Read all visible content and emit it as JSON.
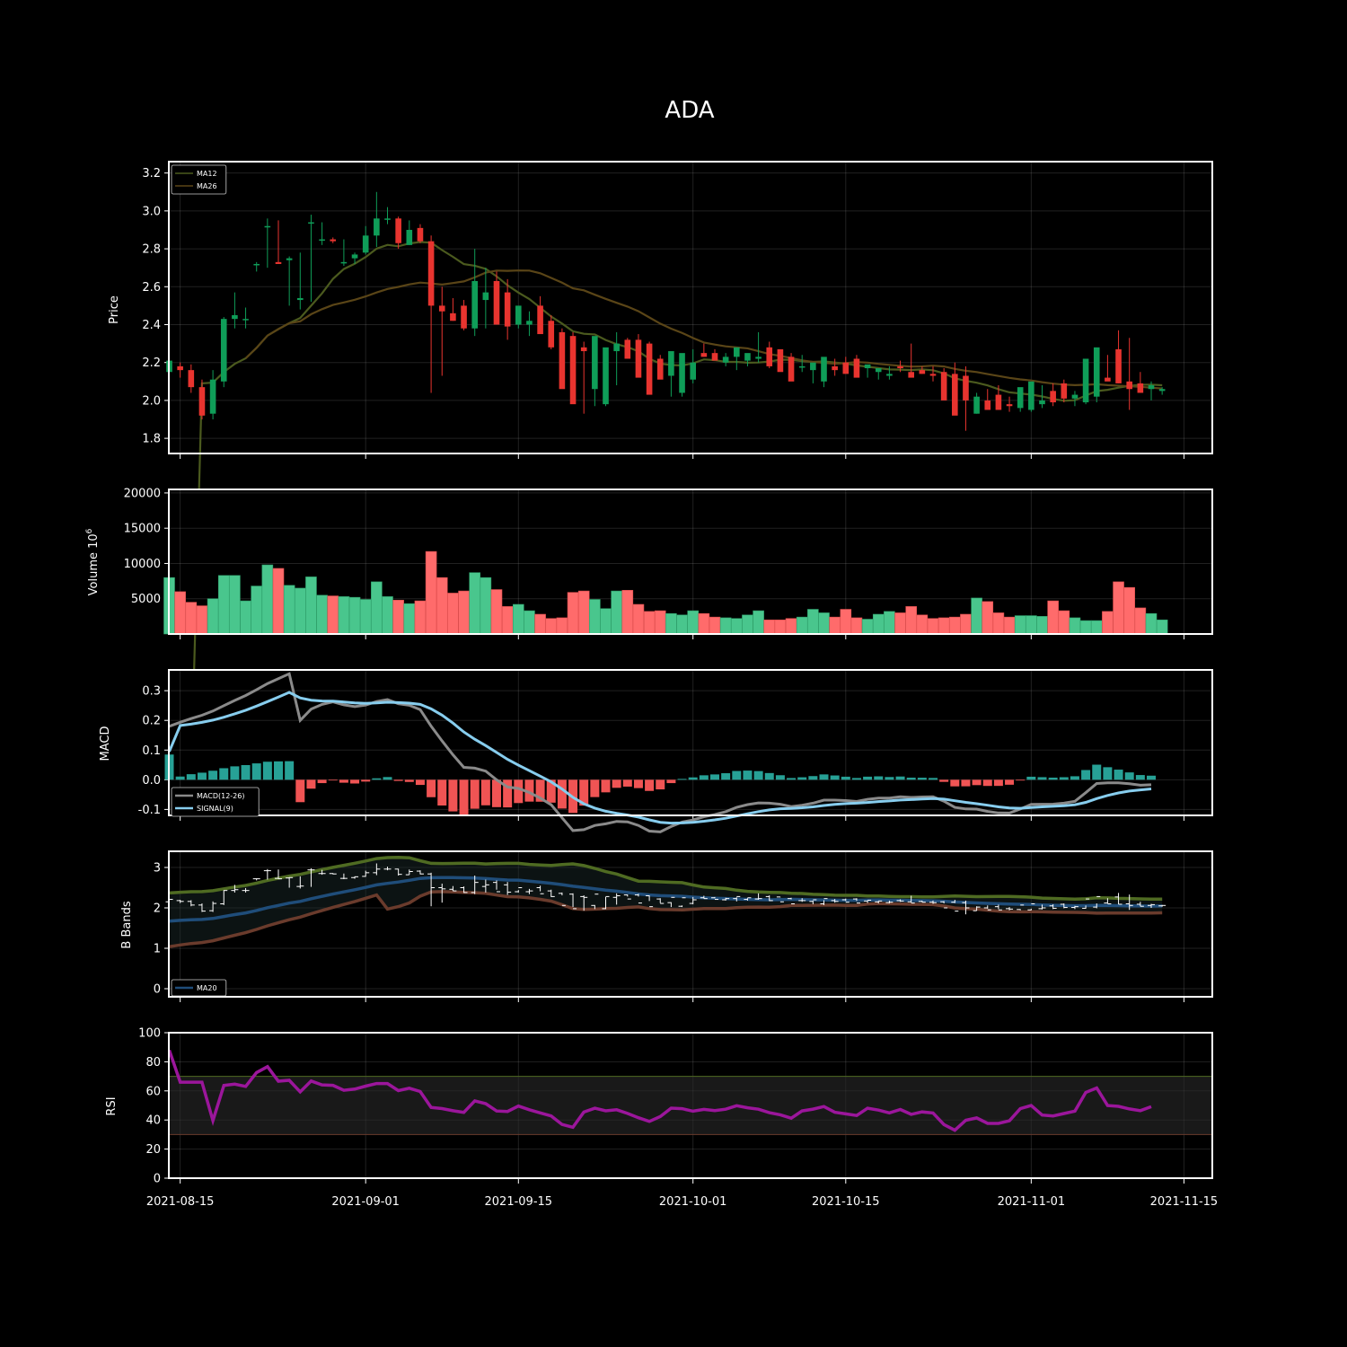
{
  "chart_data": {
    "type": "candlestick",
    "title": "ADA",
    "dates": [
      "2021-08-14",
      "2021-08-15",
      "2021-08-16",
      "2021-08-17",
      "2021-08-18",
      "2021-08-19",
      "2021-08-20",
      "2021-08-21",
      "2021-08-22",
      "2021-08-23",
      "2021-08-24",
      "2021-08-25",
      "2021-08-26",
      "2021-08-27",
      "2021-08-28",
      "2021-08-29",
      "2021-08-30",
      "2021-08-31",
      "2021-09-01",
      "2021-09-02",
      "2021-09-03",
      "2021-09-04",
      "2021-09-05",
      "2021-09-06",
      "2021-09-07",
      "2021-09-08",
      "2021-09-09",
      "2021-09-10",
      "2021-09-11",
      "2021-09-12",
      "2021-09-13",
      "2021-09-14",
      "2021-09-15",
      "2021-09-16",
      "2021-09-17",
      "2021-09-18",
      "2021-09-19",
      "2021-09-20",
      "2021-09-21",
      "2021-09-22",
      "2021-09-23",
      "2021-09-24",
      "2021-09-25",
      "2021-09-26",
      "2021-09-27",
      "2021-09-28",
      "2021-09-29",
      "2021-09-30",
      "2021-10-01",
      "2021-10-02",
      "2021-10-03",
      "2021-10-04",
      "2021-10-05",
      "2021-10-06",
      "2021-10-07",
      "2021-10-08",
      "2021-10-09",
      "2021-10-10",
      "2021-10-11",
      "2021-10-12",
      "2021-10-13",
      "2021-10-14",
      "2021-10-15",
      "2021-10-16",
      "2021-10-17",
      "2021-10-18",
      "2021-10-19",
      "2021-10-20",
      "2021-10-21",
      "2021-10-22",
      "2021-10-23",
      "2021-10-24",
      "2021-10-25",
      "2021-10-26",
      "2021-10-27",
      "2021-10-28",
      "2021-10-29",
      "2021-10-30",
      "2021-10-31",
      "2021-11-01",
      "2021-11-02",
      "2021-11-03",
      "2021-11-04",
      "2021-11-05",
      "2021-11-06",
      "2021-11-07",
      "2021-11-08",
      "2021-11-09",
      "2021-11-10",
      "2021-11-11",
      "2021-11-12",
      "2021-11-13"
    ],
    "ohlc": {
      "open": [
        2.15,
        2.18,
        2.16,
        2.07,
        1.93,
        2.1,
        2.43,
        2.43,
        2.72,
        2.92,
        2.73,
        2.74,
        2.53,
        2.94,
        2.85,
        2.85,
        2.73,
        2.75,
        2.78,
        2.87,
        2.96,
        2.96,
        2.82,
        2.91,
        2.84,
        2.5,
        2.46,
        2.5,
        2.38,
        2.53,
        2.63,
        2.57,
        2.4,
        2.4,
        2.5,
        2.42,
        2.36,
        2.34,
        2.28,
        2.06,
        1.98,
        2.26,
        2.32,
        2.32,
        2.3,
        2.22,
        2.13,
        2.04,
        2.11,
        2.25,
        2.25,
        2.2,
        2.23,
        2.21,
        2.22,
        2.28,
        2.27,
        2.23,
        2.18,
        2.16,
        2.1,
        2.18,
        2.2,
        2.22,
        2.17,
        2.15,
        2.13,
        2.18,
        2.15,
        2.16,
        2.14,
        2.15,
        2.14,
        2.13,
        1.93,
        2.0,
        2.03,
        1.98,
        1.96,
        1.95,
        1.98,
        2.05,
        2.09,
        2.01,
        1.99,
        2.02,
        2.12,
        2.27,
        2.1,
        2.09,
        2.06,
        2.05
      ],
      "high": [
        2.2,
        2.2,
        2.19,
        2.11,
        2.16,
        2.44,
        2.57,
        2.49,
        2.73,
        2.96,
        2.95,
        2.76,
        2.78,
        2.98,
        2.94,
        2.86,
        2.85,
        2.78,
        2.92,
        3.1,
        3.02,
        2.97,
        2.95,
        2.93,
        2.87,
        2.6,
        2.54,
        2.53,
        2.8,
        2.7,
        2.68,
        2.64,
        2.44,
        2.47,
        2.55,
        2.45,
        2.38,
        2.36,
        2.31,
        2.07,
        2.27,
        2.36,
        2.33,
        2.35,
        2.31,
        2.24,
        2.14,
        2.06,
        2.27,
        2.3,
        2.27,
        2.25,
        2.26,
        2.24,
        2.36,
        2.31,
        2.27,
        2.25,
        2.24,
        2.18,
        2.19,
        2.22,
        2.23,
        2.24,
        2.18,
        2.17,
        2.18,
        2.21,
        2.3,
        2.18,
        2.18,
        2.17,
        2.2,
        2.18,
        2.04,
        2.06,
        2.08,
        2.02,
        1.97,
        1.98,
        2.08,
        2.09,
        2.11,
        2.05,
        2.06,
        2.11,
        2.24,
        2.37,
        2.33,
        2.15,
        2.1,
        2.07
      ],
      "low": [
        2.13,
        2.12,
        2.04,
        1.9,
        1.9,
        2.07,
        2.38,
        2.38,
        2.68,
        2.7,
        2.72,
        2.5,
        2.48,
        2.52,
        2.82,
        2.83,
        2.71,
        2.72,
        2.77,
        2.81,
        2.93,
        2.8,
        2.82,
        2.83,
        2.04,
        2.13,
        2.42,
        2.37,
        2.34,
        2.38,
        2.45,
        2.32,
        2.38,
        2.34,
        2.41,
        2.27,
        2.31,
        2.02,
        1.93,
        1.97,
        1.97,
        2.08,
        2.28,
        2.28,
        2.17,
        2.12,
        2.02,
        2.02,
        2.09,
        2.23,
        2.24,
        2.18,
        2.16,
        2.18,
        2.2,
        2.17,
        2.26,
        2.21,
        2.15,
        2.09,
        2.07,
        2.13,
        2.17,
        2.17,
        2.12,
        2.11,
        2.11,
        2.15,
        2.13,
        2.14,
        2.1,
        2.11,
        2.12,
        1.84,
        1.93,
        1.98,
        1.97,
        1.94,
        1.94,
        1.94,
        1.96,
        1.97,
        1.99,
        1.97,
        1.98,
        1.99,
        2.11,
        2.09,
        1.95,
        2.04,
        2.0,
        2.03
      ],
      "close": [
        2.21,
        2.16,
        2.07,
        1.92,
        2.11,
        2.43,
        2.45,
        2.43,
        2.72,
        2.92,
        2.72,
        2.75,
        2.54,
        2.94,
        2.85,
        2.84,
        2.73,
        2.77,
        2.87,
        2.96,
        2.96,
        2.83,
        2.9,
        2.84,
        2.5,
        2.47,
        2.42,
        2.38,
        2.63,
        2.57,
        2.4,
        2.39,
        2.5,
        2.42,
        2.35,
        2.28,
        2.06,
        1.98,
        2.26,
        2.34,
        2.28,
        2.3,
        2.22,
        2.12,
        2.03,
        2.11,
        2.26,
        2.25,
        2.2,
        2.23,
        2.21,
        2.23,
        2.28,
        2.25,
        2.23,
        2.18,
        2.15,
        2.1,
        2.18,
        2.2,
        2.23,
        2.16,
        2.14,
        2.12,
        2.19,
        2.17,
        2.14,
        2.17,
        2.12,
        2.14,
        2.13,
        2.0,
        1.92,
        2.0,
        2.02,
        1.95,
        1.95,
        1.97,
        2.07,
        2.1,
        2.0,
        1.99,
        2.01,
        2.03,
        2.22,
        2.28,
        2.1,
        2.09,
        2.06,
        2.04,
        2.08,
        2.06
      ]
    },
    "volume_1e6": [
      8000,
      6000,
      4500,
      4000,
      5000,
      8300,
      8300,
      4700,
      6800,
      9800,
      9300,
      6900,
      6500,
      8100,
      5500,
      5400,
      5300,
      5200,
      4900,
      7400,
      5300,
      4800,
      4300,
      4700,
      11700,
      8000,
      5800,
      6100,
      8700,
      8000,
      6300,
      3900,
      4200,
      3300,
      2800,
      2200,
      2300,
      5900,
      6100,
      4900,
      3600,
      6100,
      6200,
      4200,
      3200,
      3300,
      2900,
      2700,
      3300,
      2900,
      2400,
      2300,
      2200,
      2700,
      3300,
      2000,
      2000,
      2200,
      2400,
      3500,
      3000,
      2400,
      3500,
      2300,
      2100,
      2800,
      3200,
      3000,
      3900,
      2700,
      2200,
      2300,
      2400,
      2800,
      5100,
      4600,
      3000,
      2400,
      2600,
      2600,
      2500,
      4700,
      3300,
      2300,
      1900,
      1900,
      3200,
      7400,
      6600,
      3700,
      2900,
      2000
    ],
    "volume_axis_label": "Volume  10",
    "volume_axis_exponent": "6",
    "price_axis_label": "Price",
    "price_ylim": [
      1.72,
      3.26
    ],
    "volume_ylim": [
      0,
      20500
    ],
    "macd_axis_label": "MACD",
    "macd_ylim": [
      -0.12,
      0.37
    ],
    "bb_axis_label": "B Bands",
    "bb_ylim": [
      -0.2,
      3.4
    ],
    "rsi_axis_label": "RSI",
    "rsi_ylim": [
      0,
      100
    ],
    "rsi_band": [
      30,
      70
    ],
    "x_ticks": [
      "2021-08-15",
      "2021-09-01",
      "2021-09-15",
      "2021-10-01",
      "2021-10-15",
      "2021-11-01",
      "2021-11-15"
    ],
    "grid": true,
    "legends": {
      "price": [
        "MA12",
        "MA26"
      ],
      "macd": [
        "MACD(12-26)",
        "SIGNAL(9)"
      ],
      "bb": [
        "MA20"
      ]
    },
    "legend_position": "top-left (price), bottom-left (MACD, B Bands)",
    "colors": {
      "up": "#0f9d58",
      "down": "#e8342f",
      "volume_up": "#49c68d",
      "volume_down": "#ff6b6b",
      "macd_hist_pos": "#27a196",
      "macd_hist_neg": "#f05454",
      "macd_line": "#8a8a8a",
      "signal_line": "#87cdee",
      "ma12": "#4b5a1e",
      "ma26": "#5a4517",
      "bb_upper": "#4f6b22",
      "bb_mid": "#1f4d7a",
      "bb_lower": "#6a3b2c",
      "rsi_line": "#9b169b"
    }
  }
}
